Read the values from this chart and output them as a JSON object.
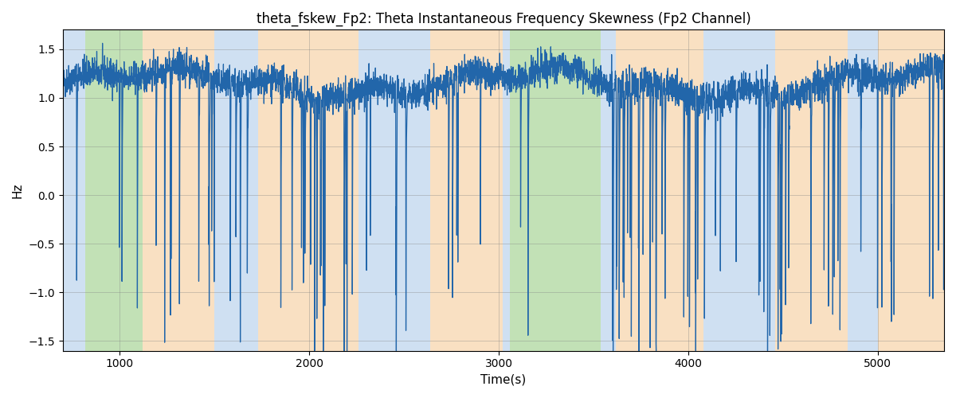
{
  "title": "theta_fskew_Fp2: Theta Instantaneous Frequency Skewness (Fp2 Channel)",
  "xlabel": "Time(s)",
  "ylabel": "Hz",
  "ylim": [
    -1.6,
    1.7
  ],
  "xlim": [
    700,
    5350
  ],
  "line_color": "#2266aa",
  "line_width": 0.9,
  "background_regions": [
    {
      "start": 700,
      "end": 820,
      "color": "#a8c8e8",
      "alpha": 0.55
    },
    {
      "start": 820,
      "end": 870,
      "color": "#90c97a",
      "alpha": 0.55
    },
    {
      "start": 870,
      "end": 1120,
      "color": "#90c97a",
      "alpha": 0.55
    },
    {
      "start": 1120,
      "end": 1500,
      "color": "#f5c890",
      "alpha": 0.55
    },
    {
      "start": 1500,
      "end": 1730,
      "color": "#a8c8e8",
      "alpha": 0.55
    },
    {
      "start": 1730,
      "end": 1800,
      "color": "#f5c890",
      "alpha": 0.55
    },
    {
      "start": 1800,
      "end": 2260,
      "color": "#f5c890",
      "alpha": 0.55
    },
    {
      "start": 2260,
      "end": 2640,
      "color": "#a8c8e8",
      "alpha": 0.55
    },
    {
      "start": 2640,
      "end": 3020,
      "color": "#f5c890",
      "alpha": 0.55
    },
    {
      "start": 3020,
      "end": 3060,
      "color": "#a8c8e8",
      "alpha": 0.55
    },
    {
      "start": 3060,
      "end": 3540,
      "color": "#90c97a",
      "alpha": 0.55
    },
    {
      "start": 3540,
      "end": 3620,
      "color": "#a8c8e8",
      "alpha": 0.55
    },
    {
      "start": 3620,
      "end": 4080,
      "color": "#f5c890",
      "alpha": 0.55
    },
    {
      "start": 4080,
      "end": 4460,
      "color": "#a8c8e8",
      "alpha": 0.55
    },
    {
      "start": 4460,
      "end": 4840,
      "color": "#f5c890",
      "alpha": 0.55
    },
    {
      "start": 4840,
      "end": 5000,
      "color": "#a8c8e8",
      "alpha": 0.55
    },
    {
      "start": 5000,
      "end": 5350,
      "color": "#f5c890",
      "alpha": 0.55
    }
  ],
  "t_start": 700,
  "t_end": 5350,
  "n_points": 4650,
  "seed": 42,
  "title_fontsize": 12,
  "axis_fontsize": 11
}
